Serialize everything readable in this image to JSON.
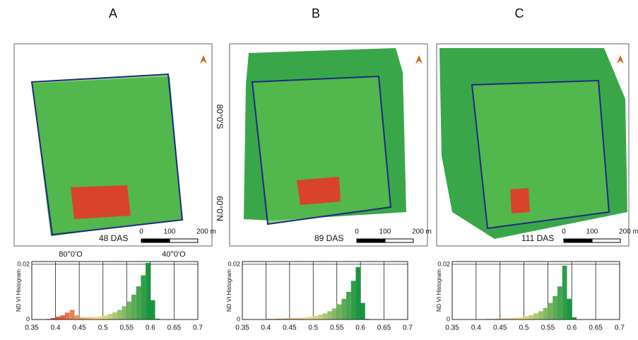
{
  "coordinates": {
    "lat_top": "80°0'S",
    "lat_bottom": "60°0'N",
    "lon_left": "80°0'O",
    "lon_right": "40°0'O"
  },
  "chart_data": [
    {
      "type": "histogram",
      "title": "A",
      "das_label": "48 DAS",
      "scale_labels": [
        "0",
        "100",
        "200 m"
      ],
      "ylabel": "ND VI Histogram",
      "bins": [
        0.35,
        0.36,
        0.37,
        0.38,
        0.39,
        0.4,
        0.41,
        0.42,
        0.43,
        0.44,
        0.45,
        0.46,
        0.47,
        0.48,
        0.49,
        0.5,
        0.51,
        0.52,
        0.53,
        0.54,
        0.55,
        0.56,
        0.57,
        0.58,
        0.59,
        0.6,
        0.61,
        0.62,
        0.63,
        0.64,
        0.65,
        0.66,
        0.67,
        0.68,
        0.69,
        0.7
      ],
      "values": [
        0,
        0,
        0,
        0.0002,
        0.0005,
        0.001,
        0.0015,
        0.0025,
        0.0035,
        0.0015,
        0.0008,
        0.0008,
        0.0009,
        0.001,
        0.0012,
        0.0015,
        0.002,
        0.0026,
        0.0035,
        0.0048,
        0.0065,
        0.009,
        0.012,
        0.016,
        0.0205,
        0.007,
        0.0003,
        0,
        0,
        0,
        0,
        0,
        0,
        0,
        0
      ],
      "colors": [
        "#d7301f",
        "#f7e08a",
        "#1a9641"
      ],
      "xlim": [
        0.35,
        0.7
      ],
      "ylim": [
        0,
        0.021
      ],
      "xticks": [
        0.35,
        0.4,
        0.45,
        0.5,
        0.55,
        0.6,
        0.65,
        0.7
      ],
      "yticks": [
        0,
        0.02
      ],
      "grid": true
    },
    {
      "type": "histogram",
      "title": "B",
      "das_label": "89 DAS",
      "scale_labels": [
        "0",
        "100",
        "200 m"
      ],
      "ylabel": "ND VI Histogram",
      "bins": [
        0.35,
        0.36,
        0.37,
        0.38,
        0.39,
        0.4,
        0.41,
        0.42,
        0.43,
        0.44,
        0.45,
        0.46,
        0.47,
        0.48,
        0.49,
        0.5,
        0.51,
        0.52,
        0.53,
        0.54,
        0.55,
        0.56,
        0.57,
        0.58,
        0.59,
        0.6,
        0.61,
        0.62,
        0.63,
        0.64,
        0.65,
        0.66,
        0.67,
        0.68,
        0.69,
        0.7
      ],
      "values": [
        0,
        0,
        0,
        0,
        0,
        0.0002,
        0.0002,
        0.0003,
        0.0003,
        0.0004,
        0.0004,
        0.0005,
        0.0006,
        0.0008,
        0.001,
        0.0013,
        0.0017,
        0.0022,
        0.003,
        0.004,
        0.0055,
        0.0075,
        0.01,
        0.014,
        0.019,
        0.006,
        0.0002,
        0,
        0,
        0,
        0,
        0,
        0,
        0,
        0
      ],
      "colors": [
        "#d7301f",
        "#f7e08a",
        "#1a9641"
      ],
      "xlim": [
        0.35,
        0.7
      ],
      "ylim": [
        0,
        0.021
      ],
      "xticks": [
        0.35,
        0.4,
        0.45,
        0.5,
        0.55,
        0.6,
        0.65,
        0.7
      ],
      "yticks": [
        0,
        0.02
      ],
      "grid": true
    },
    {
      "type": "histogram",
      "title": "C",
      "das_label": "111 DAS",
      "scale_labels": [
        "0",
        "100",
        "200 m"
      ],
      "ylabel": "ND VI Histogram",
      "bins": [
        0.35,
        0.36,
        0.37,
        0.38,
        0.39,
        0.4,
        0.41,
        0.42,
        0.43,
        0.44,
        0.45,
        0.46,
        0.47,
        0.48,
        0.49,
        0.5,
        0.51,
        0.52,
        0.53,
        0.54,
        0.55,
        0.56,
        0.57,
        0.58,
        0.59,
        0.6,
        0.61,
        0.62,
        0.63,
        0.64,
        0.65,
        0.66,
        0.67,
        0.68,
        0.69,
        0.7
      ],
      "values": [
        0,
        0,
        0,
        0,
        0,
        0,
        0.0001,
        0.0002,
        0.0002,
        0.0003,
        0.0003,
        0.0004,
        0.0005,
        0.0007,
        0.0009,
        0.0012,
        0.0016,
        0.0022,
        0.003,
        0.0042,
        0.006,
        0.0085,
        0.012,
        0.0195,
        0.0075,
        0.0008,
        0,
        0,
        0,
        0,
        0,
        0,
        0,
        0,
        0
      ],
      "colors": [
        "#d7301f",
        "#f7e08a",
        "#1a9641"
      ],
      "xlim": [
        0.35,
        0.7
      ],
      "ylim": [
        0,
        0.021
      ],
      "xticks": [
        0.35,
        0.4,
        0.45,
        0.5,
        0.55,
        0.6,
        0.65,
        0.7
      ],
      "yticks": [
        0,
        0.02
      ],
      "grid": true
    }
  ]
}
